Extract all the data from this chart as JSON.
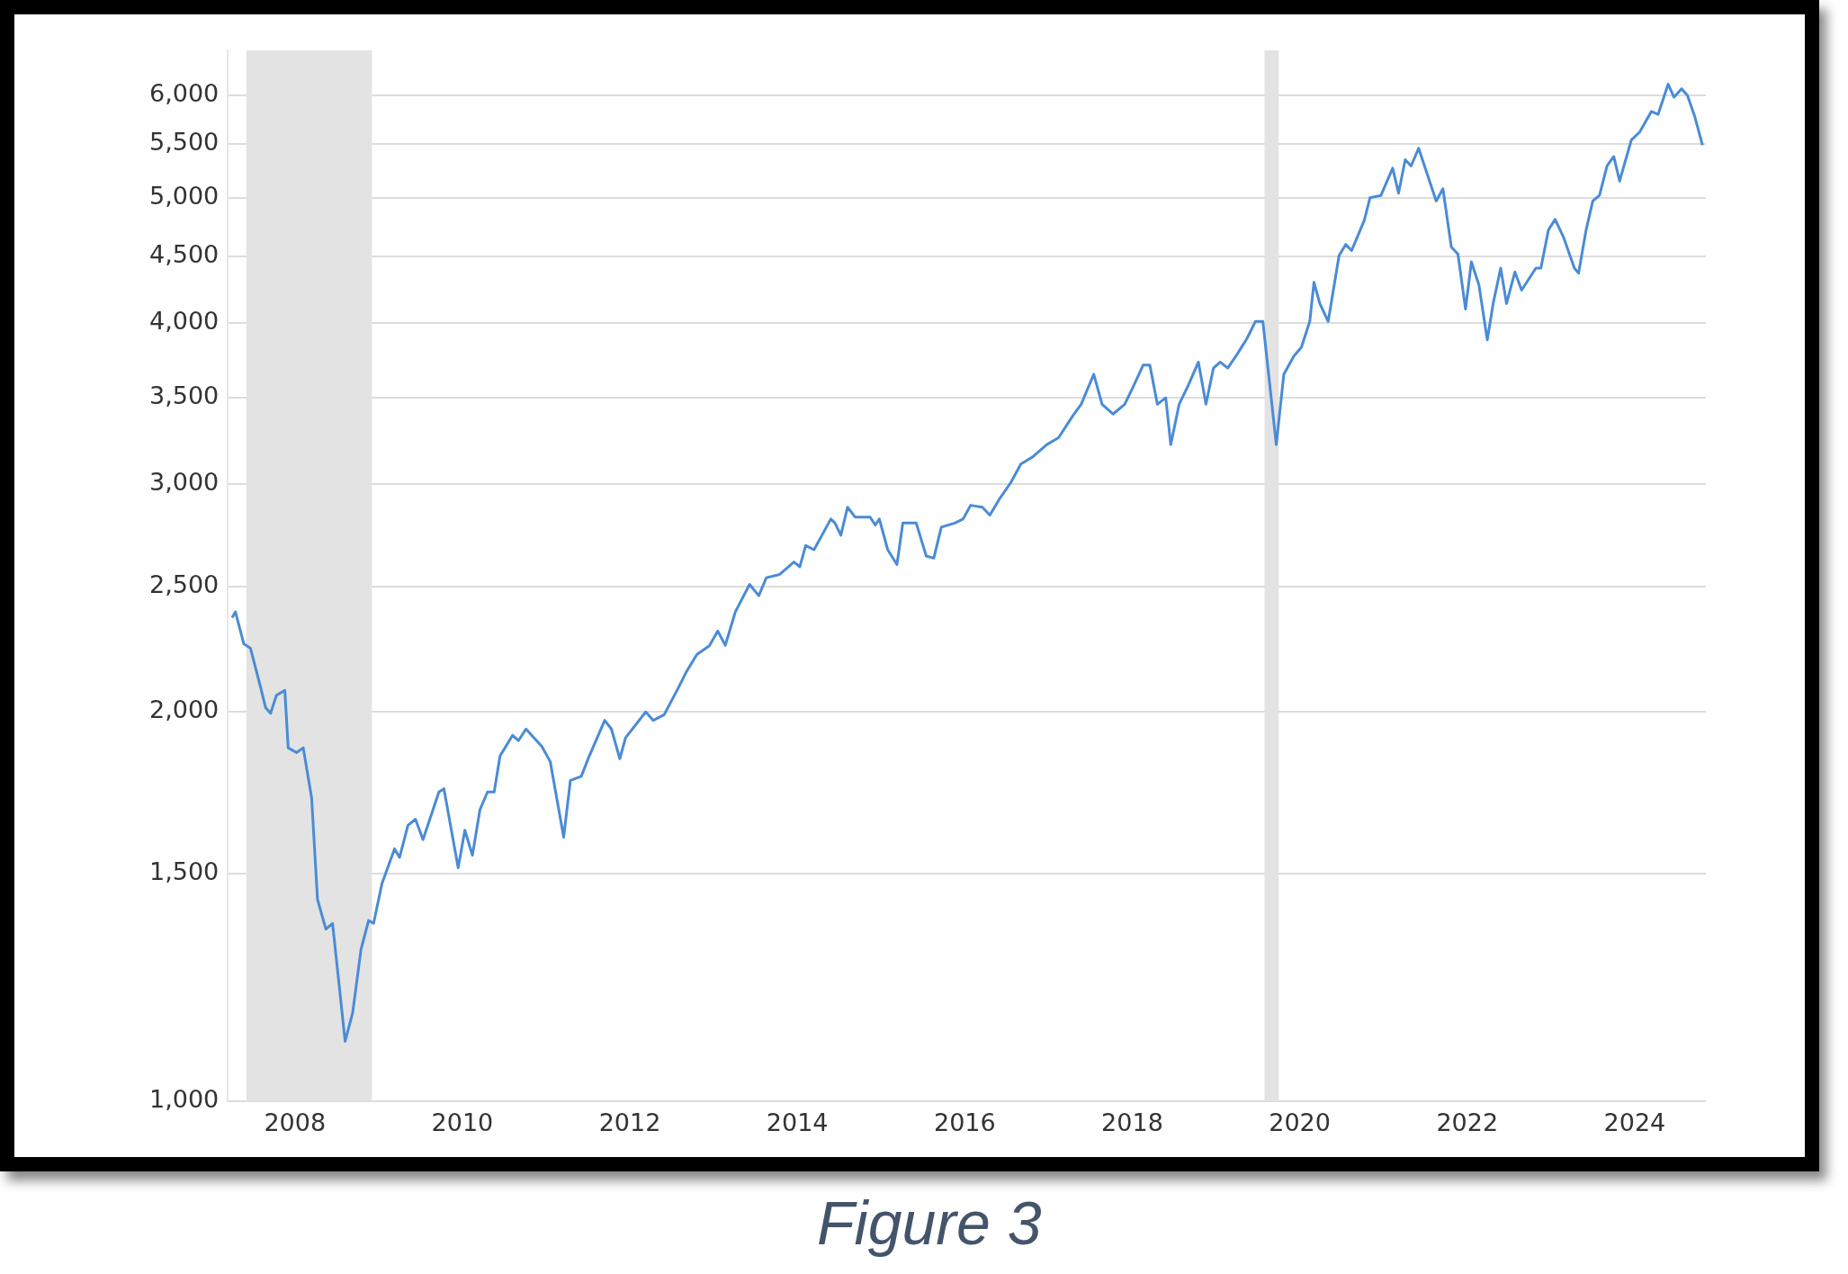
{
  "chart_data": {
    "type": "line",
    "log": "y",
    "grid": "y",
    "legend": false,
    "marker": "none",
    "x": [
      2007.75,
      2007.79,
      2007.89,
      2007.97,
      2008.1,
      2008.15,
      2008.21,
      2008.28,
      2008.38,
      2008.42,
      2008.52,
      2008.6,
      2008.7,
      2008.77,
      2008.87,
      2008.95,
      2009.1,
      2009.19,
      2009.29,
      2009.38,
      2009.44,
      2009.54,
      2009.69,
      2009.75,
      2009.85,
      2009.94,
      2010.03,
      2010.22,
      2010.28,
      2010.45,
      2010.53,
      2010.62,
      2010.71,
      2010.8,
      2010.88,
      2010.95,
      2011.1,
      2011.17,
      2011.26,
      2011.45,
      2011.55,
      2011.71,
      2011.79,
      2011.92,
      2012.01,
      2012.2,
      2012.28,
      2012.38,
      2012.45,
      2012.69,
      2012.78,
      2012.91,
      2013.08,
      2013.17,
      2013.3,
      2013.45,
      2013.55,
      2013.64,
      2013.76,
      2013.93,
      2014.04,
      2014.13,
      2014.29,
      2014.46,
      2014.53,
      2014.6,
      2014.7,
      2014.9,
      2014.95,
      2015.02,
      2015.1,
      2015.19,
      2015.37,
      2015.43,
      2015.48,
      2015.58,
      2015.69,
      2015.76,
      2015.92,
      2016.04,
      2016.13,
      2016.22,
      2016.38,
      2016.48,
      2016.57,
      2016.71,
      2016.8,
      2016.91,
      2017.05,
      2017.17,
      2017.31,
      2017.48,
      2017.62,
      2017.79,
      2017.89,
      2018.04,
      2018.14,
      2018.27,
      2018.41,
      2018.52,
      2018.63,
      2018.71,
      2018.8,
      2018.9,
      2018.96,
      2019.06,
      2019.17,
      2019.29,
      2019.38,
      2019.47,
      2019.55,
      2019.64,
      2019.75,
      2019.87,
      2019.97,
      2020.06,
      2020.22,
      2020.31,
      2020.43,
      2020.52,
      2020.62,
      2020.67,
      2020.74,
      2020.84,
      2020.97,
      2021.05,
      2021.12,
      2021.27,
      2021.34,
      2021.47,
      2021.61,
      2021.68,
      2021.76,
      2021.83,
      2021.92,
      2022.13,
      2022.21,
      2022.31,
      2022.39,
      2022.48,
      2022.55,
      2022.64,
      2022.74,
      2022.81,
      2022.9,
      2022.97,
      2023.07,
      2023.15,
      2023.32,
      2023.38,
      2023.47,
      2023.55,
      2023.65,
      2023.78,
      2023.83,
      2023.92,
      2024.0,
      2024.08,
      2024.17,
      2024.25,
      2024.32,
      2024.46,
      2024.56,
      2024.7,
      2024.78,
      2024.9,
      2024.97,
      2025.06,
      2025.13,
      2025.22,
      2025.31
    ],
    "series": [
      {
        "color": "#4a8bd6",
        "values": [
          2366,
          2390,
          2258,
          2240,
          2078,
          2015,
          1995,
          2060,
          2078,
          1876,
          1860,
          1876,
          1716,
          1432,
          1358,
          1372,
          1112,
          1170,
          1310,
          1379,
          1372,
          1473,
          1567,
          1543,
          1634,
          1652,
          1593,
          1734,
          1744,
          1515,
          1620,
          1549,
          1680,
          1734,
          1734,
          1849,
          1918,
          1900,
          1940,
          1880,
          1830,
          1600,
          1770,
          1783,
          1845,
          1970,
          1940,
          1840,
          1910,
          2000,
          1970,
          1990,
          2088,
          2145,
          2215,
          2250,
          2310,
          2252,
          2390,
          2510,
          2460,
          2540,
          2555,
          2612,
          2590,
          2690,
          2670,
          2820,
          2800,
          2740,
          2880,
          2830,
          2830,
          2790,
          2820,
          2670,
          2600,
          2800,
          2800,
          2640,
          2630,
          2780,
          2800,
          2820,
          2890,
          2880,
          2840,
          2920,
          3010,
          3110,
          3150,
          3220,
          3260,
          3390,
          3460,
          3650,
          3460,
          3400,
          3460,
          3580,
          3710,
          3710,
          3460,
          3500,
          3220,
          3460,
          3580,
          3730,
          3460,
          3690,
          3730,
          3690,
          3780,
          3890,
          4010,
          4010,
          3220,
          3650,
          3770,
          3830,
          4010,
          4300,
          4140,
          4010,
          4510,
          4600,
          4550,
          4800,
          5000,
          5020,
          5270,
          5040,
          5350,
          5290,
          5460,
          4970,
          5080,
          4580,
          4520,
          4100,
          4460,
          4280,
          3880,
          4140,
          4410,
          4140,
          4380,
          4240,
          4410,
          4410,
          4720,
          4810,
          4660,
          4410,
          4370,
          4720,
          4970,
          5020,
          5290,
          5380,
          5150,
          5540,
          5620,
          5830,
          5800,
          6120,
          5980,
          6070,
          6000,
          5770,
          5490
        ]
      }
    ],
    "xlim": [
      2007.7,
      2025.35
    ],
    "xticks": [
      {
        "value": 2008.5,
        "label": "2008"
      },
      {
        "value": 2010.5,
        "label": "2010"
      },
      {
        "value": 2012.5,
        "label": "2012"
      },
      {
        "value": 2014.5,
        "label": "2014"
      },
      {
        "value": 2016.5,
        "label": "2016"
      },
      {
        "value": 2018.5,
        "label": "2018"
      },
      {
        "value": 2020.5,
        "label": "2020"
      },
      {
        "value": 2022.5,
        "label": "2022"
      },
      {
        "value": 2024.5,
        "label": "2024"
      }
    ],
    "ylim": [
      1000,
      6500
    ],
    "yticks": [
      {
        "value": 1000,
        "label": "1,000"
      },
      {
        "value": 1500,
        "label": "1,500"
      },
      {
        "value": 2000,
        "label": "2,000"
      },
      {
        "value": 2500,
        "label": "2,500"
      },
      {
        "value": 3000,
        "label": "3,000"
      },
      {
        "value": 3500,
        "label": "3,500"
      },
      {
        "value": 4000,
        "label": "4,000"
      },
      {
        "value": 4500,
        "label": "4,500"
      },
      {
        "value": 5000,
        "label": "5,000"
      },
      {
        "value": 5500,
        "label": "5,500"
      },
      {
        "value": 6000,
        "label": "6,000"
      }
    ],
    "bands": [
      {
        "axis": "x",
        "from": 2007.92,
        "to": 2009.42,
        "color": "#e3e3e3"
      },
      {
        "axis": "x",
        "from": 2020.08,
        "to": 2020.25,
        "color": "#e3e3e3"
      }
    ],
    "annotations": [
      "Figure 3"
    ]
  }
}
